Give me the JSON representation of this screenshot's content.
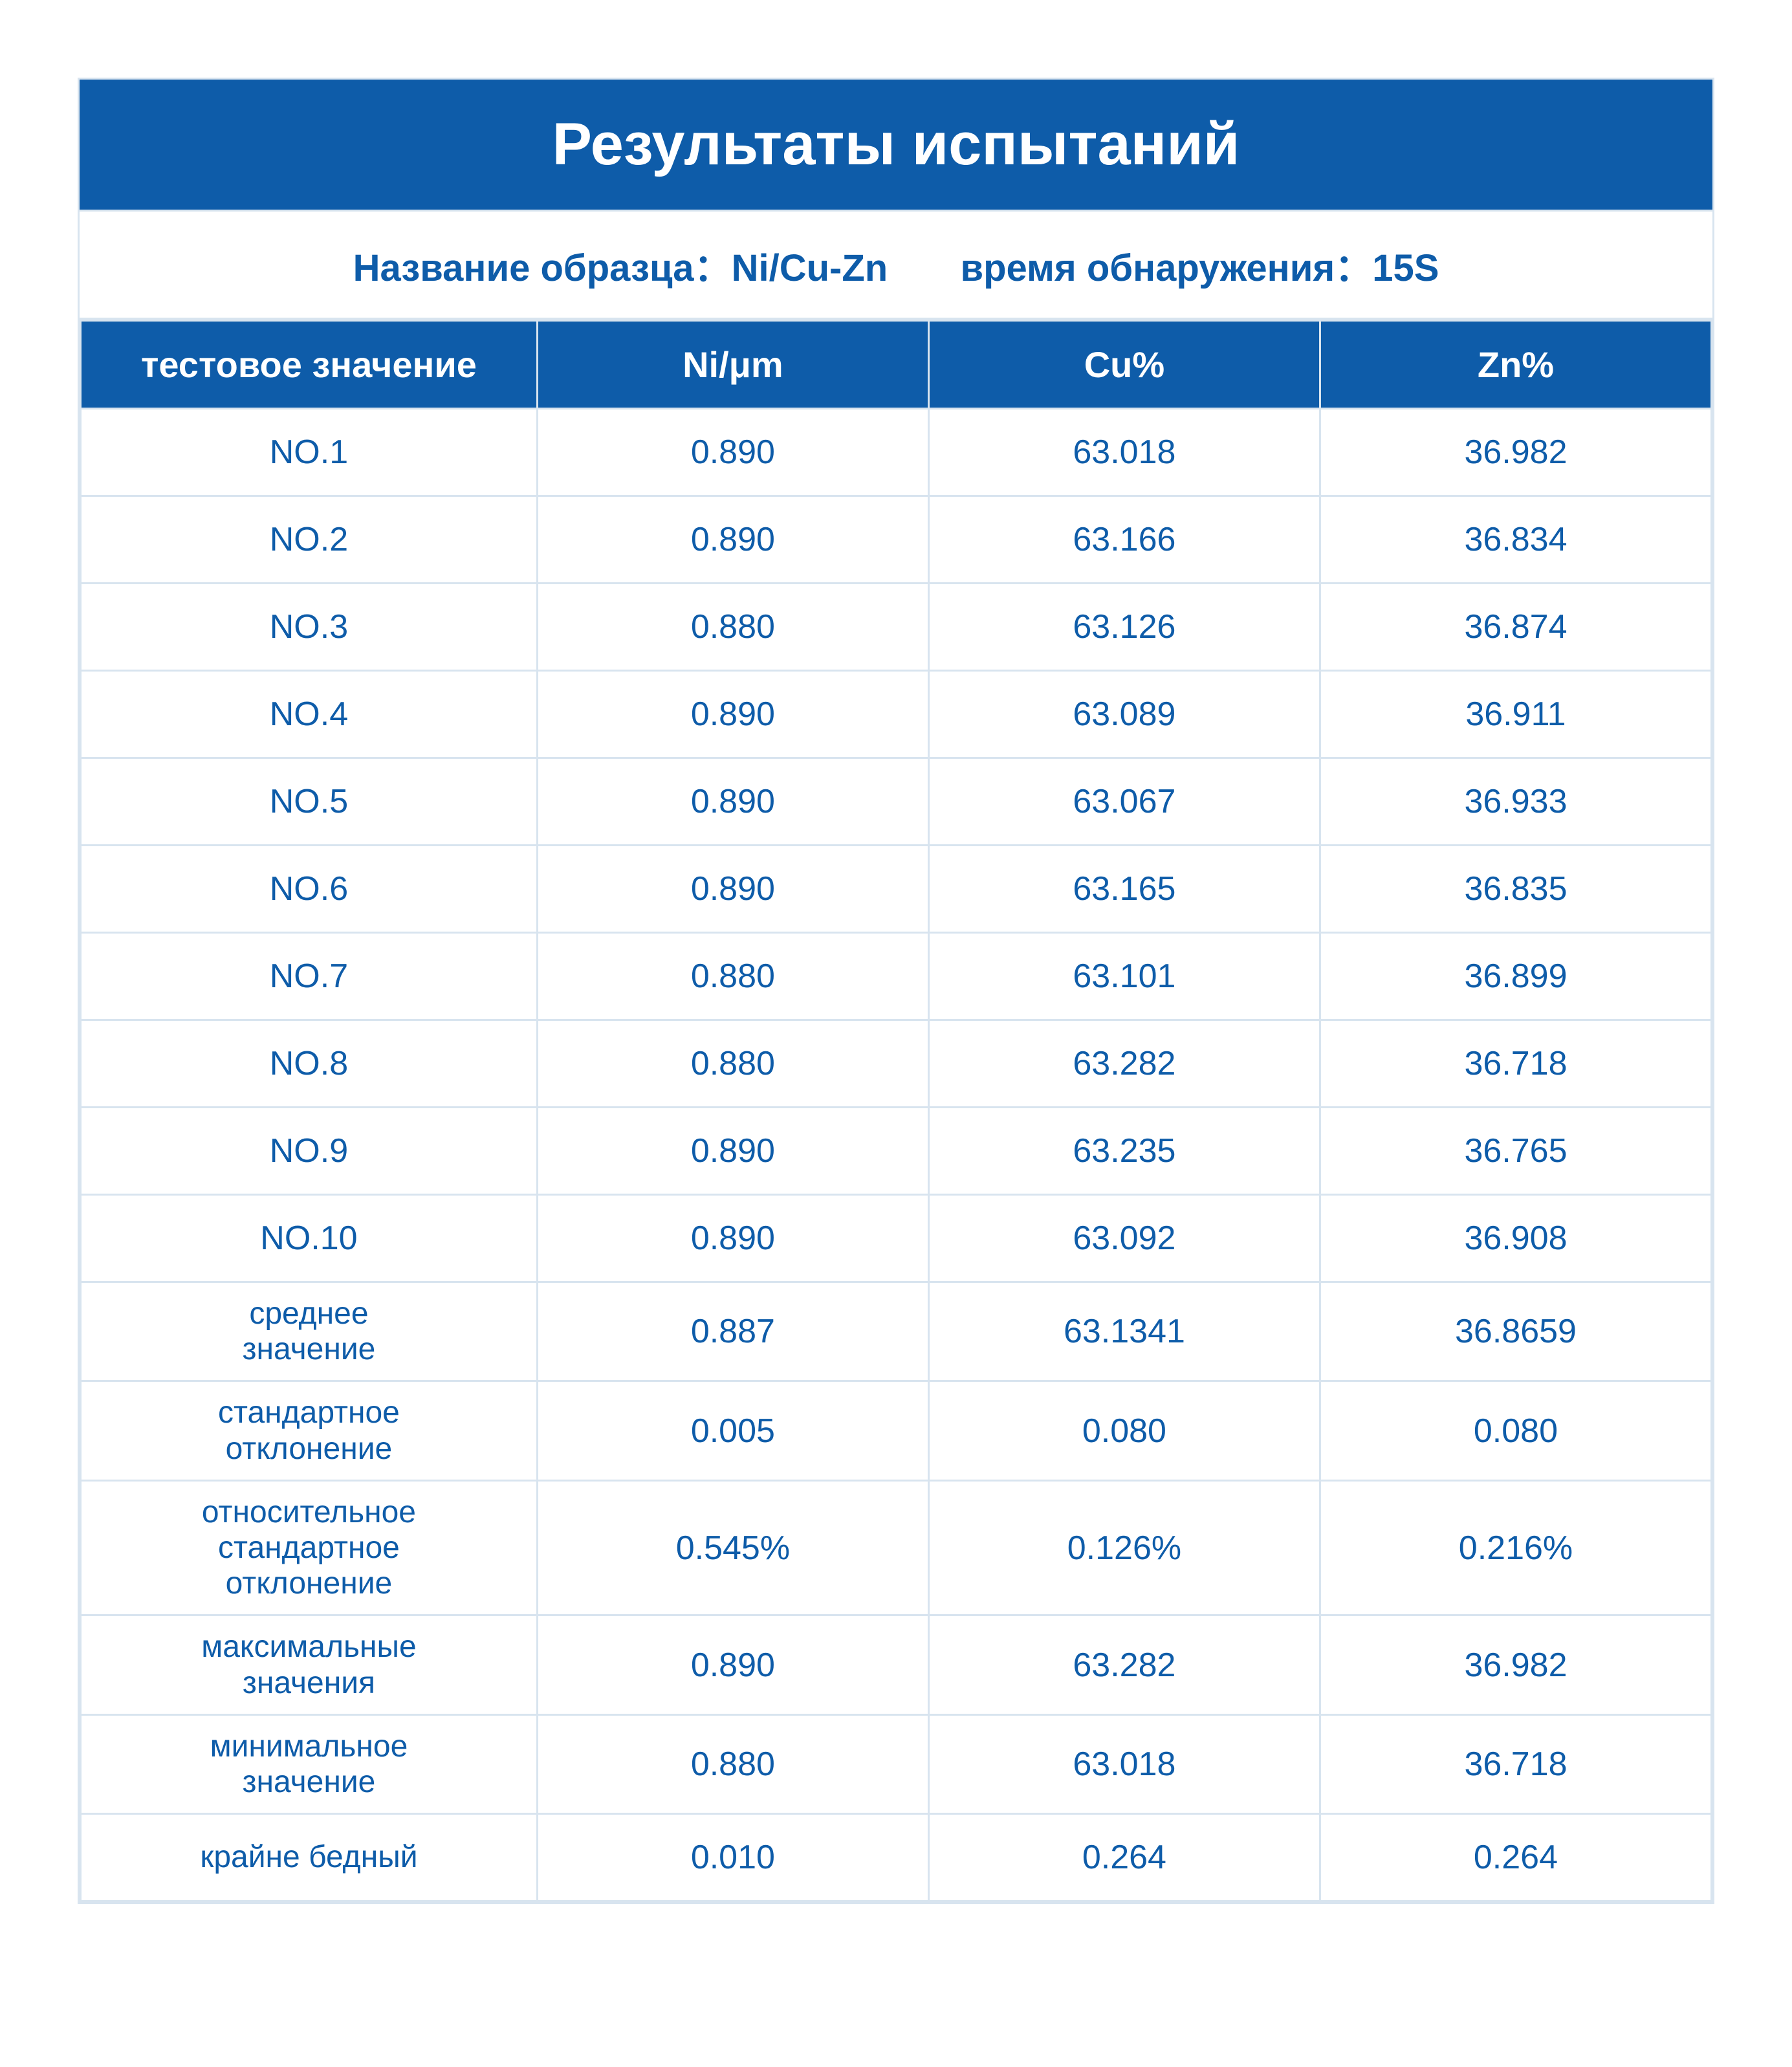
{
  "colors": {
    "primary_blue": "#0e5ca9",
    "border_light": "#d8e4ef",
    "white": "#ffffff",
    "text_blue": "#0e5ca9"
  },
  "typography": {
    "title_fontsize": 92,
    "subtitle_fontsize": 58,
    "header_fontsize": 56,
    "cell_fontsize": 52,
    "label_cell_fontsize": 48
  },
  "title": "Результаты испытаний",
  "subtitle": {
    "sample_label": "Название образца：",
    "sample_value": "Ni/Cu-Zn",
    "time_label": "время обнаружения：",
    "time_value": "15S"
  },
  "table": {
    "type": "table",
    "columns": [
      "тестовое значение",
      "Ni/μm",
      "Cu%",
      "Zn%"
    ],
    "column_widths_pct": [
      28,
      24,
      24,
      24
    ],
    "data_rows": [
      {
        "label": "NO.1",
        "ni": "0.890",
        "cu": "63.018",
        "zn": "36.982"
      },
      {
        "label": "NO.2",
        "ni": "0.890",
        "cu": "63.166",
        "zn": "36.834"
      },
      {
        "label": "NO.3",
        "ni": "0.880",
        "cu": "63.126",
        "zn": "36.874"
      },
      {
        "label": "NO.4",
        "ni": "0.890",
        "cu": "63.089",
        "zn": "36.911"
      },
      {
        "label": "NO.5",
        "ni": "0.890",
        "cu": "63.067",
        "zn": "36.933"
      },
      {
        "label": "NO.6",
        "ni": "0.890",
        "cu": "63.165",
        "zn": "36.835"
      },
      {
        "label": "NO.7",
        "ni": "0.880",
        "cu": "63.101",
        "zn": "36.899"
      },
      {
        "label": "NO.8",
        "ni": "0.880",
        "cu": "63.282",
        "zn": "36.718"
      },
      {
        "label": "NO.9",
        "ni": "0.890",
        "cu": "63.235",
        "zn": "36.765"
      },
      {
        "label": "NO.10",
        "ni": "0.890",
        "cu": "63.092",
        "zn": "36.908"
      }
    ],
    "summary_rows": [
      {
        "label": "среднее\nзначение",
        "ni": "0.887",
        "cu": "63.1341",
        "zn": "36.8659"
      },
      {
        "label": "стандартное\nотклонение",
        "ni": "0.005",
        "cu": "0.080",
        "zn": "0.080"
      },
      {
        "label": "относительное\nстандартное\nотклонение",
        "ni": "0.545%",
        "cu": "0.126%",
        "zn": "0.216%"
      },
      {
        "label": "максимальные\nзначения",
        "ni": "0.890",
        "cu": "63.282",
        "zn": "36.982"
      },
      {
        "label": "минимальное\nзначение",
        "ni": "0.880",
        "cu": "63.018",
        "zn": "36.718"
      },
      {
        "label": "крайне бедный",
        "ni": "0.010",
        "cu": "0.264",
        "zn": "0.264"
      }
    ]
  }
}
